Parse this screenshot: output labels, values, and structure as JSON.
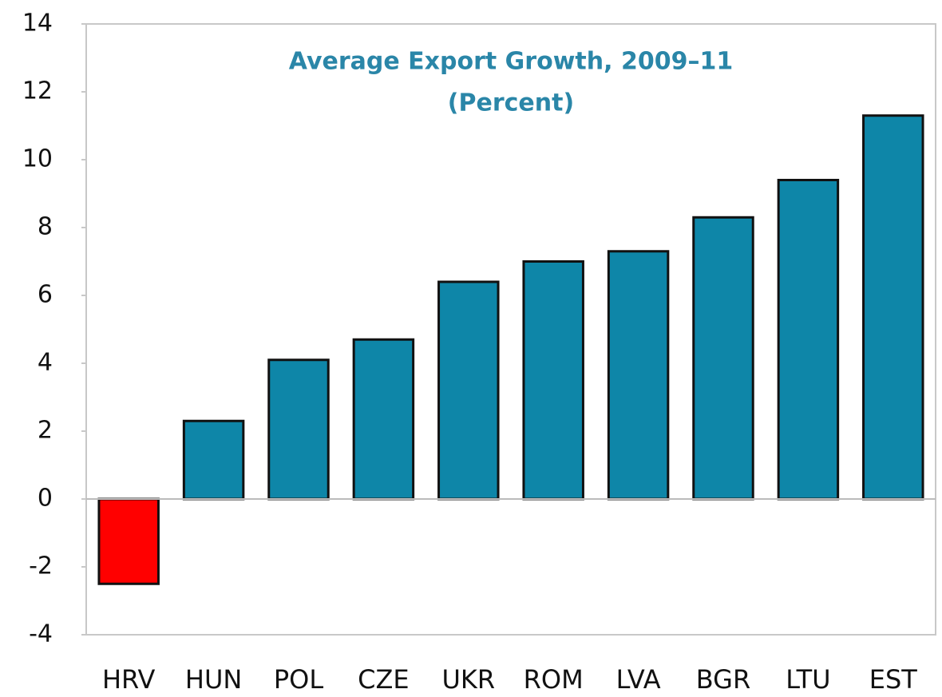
{
  "chart_data": {
    "type": "bar",
    "title": "Average Export Growth, 2009–11",
    "subtitle": "(Percent)",
    "categories": [
      "HRV",
      "HUN",
      "POL",
      "CZE",
      "UKR",
      "ROM",
      "LVA",
      "BGR",
      "LTU",
      "EST"
    ],
    "values": [
      -2.5,
      2.3,
      4.1,
      4.7,
      6.4,
      7.0,
      7.3,
      8.3,
      9.4,
      11.3
    ],
    "colors": [
      "#ff0000",
      "#0e86a8",
      "#0e86a8",
      "#0e86a8",
      "#0e86a8",
      "#0e86a8",
      "#0e86a8",
      "#0e86a8",
      "#0e86a8",
      "#0e86a8"
    ],
    "ylim": [
      -4,
      14
    ],
    "yticks": [
      -4,
      -2,
      0,
      2,
      4,
      6,
      8,
      10,
      12,
      14
    ],
    "grid": false
  }
}
